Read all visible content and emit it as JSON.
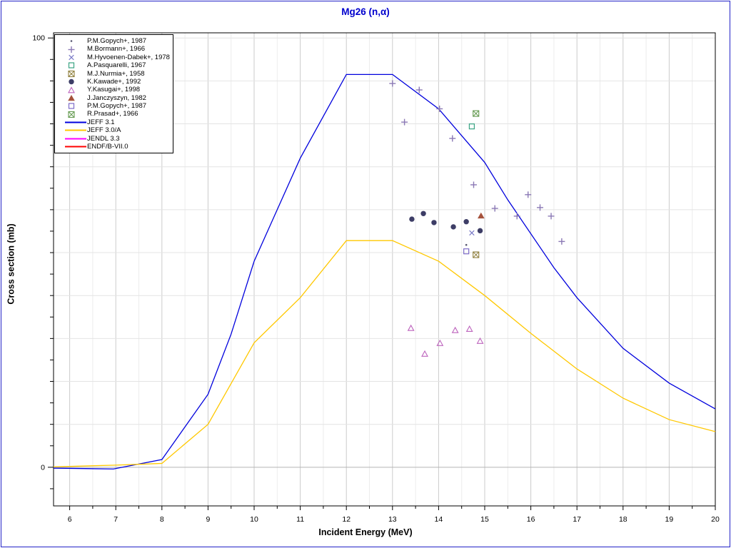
{
  "chart_data": {
    "type": "line+scatter",
    "title": "Mg26 (n,α)",
    "xlabel": "Incident Energy (MeV)",
    "ylabel": "Cross section (mb)",
    "xlim": [
      5.65,
      20
    ],
    "ylim": [
      -9.0,
      101.2
    ],
    "x_major_ticks": [
      6,
      7,
      8,
      9,
      10,
      11,
      12,
      13,
      14,
      15,
      16,
      17,
      18,
      19,
      20
    ],
    "x_minor_tick_step": 0.5,
    "y_labeled_ticks": [
      0,
      100
    ],
    "y_minor_tick_step": 5,
    "y_grid_step": 10,
    "grid": true,
    "legend_position": "top-left",
    "series": [
      {
        "id": "jeff31",
        "label": "JEFF 3.1",
        "color": "#0000dd",
        "points": [
          [
            5.65,
            -0.2
          ],
          [
            6.95,
            -0.4
          ],
          [
            8,
            1.8
          ],
          [
            9,
            17
          ],
          [
            9.5,
            31
          ],
          [
            10,
            48
          ],
          [
            11,
            72
          ],
          [
            12,
            91.5
          ],
          [
            13,
            91.5
          ],
          [
            14,
            83.5
          ],
          [
            15,
            71
          ],
          [
            15.5,
            62.3
          ],
          [
            16.5,
            46.5
          ],
          [
            17,
            39.5
          ],
          [
            18,
            27.7
          ],
          [
            19,
            19.6
          ],
          [
            20,
            13.6
          ]
        ]
      },
      {
        "id": "jeff30a",
        "label": "JEFF 3.0/A",
        "color": "#ffc800",
        "points": [
          [
            5.65,
            0.1
          ],
          [
            7,
            0.5
          ],
          [
            8,
            0.9
          ],
          [
            9,
            10
          ],
          [
            10,
            29
          ],
          [
            11,
            39.5
          ],
          [
            12,
            52.8
          ],
          [
            13,
            52.8
          ],
          [
            14,
            48
          ],
          [
            15,
            40
          ],
          [
            16,
            31.2
          ],
          [
            17,
            22.9
          ],
          [
            18,
            16.1
          ],
          [
            19,
            11.1
          ],
          [
            20,
            8.3
          ]
        ]
      },
      {
        "id": "jendl33",
        "label": "JENDL 3.3",
        "color": "#ff00ff",
        "points": []
      },
      {
        "id": "endfb70",
        "label": "ENDF/B-VII.0",
        "color": "#ff0000",
        "points": []
      }
    ],
    "scatter": [
      {
        "id": "gopych-dot",
        "label": "P.M.Gopych+, 1987",
        "marker": "dot",
        "color": "#55556f",
        "points": [
          [
            14.6,
            51.8
          ]
        ]
      },
      {
        "id": "bormann",
        "label": "M.Bormann+, 1966",
        "marker": "plus",
        "color": "#8b79b5",
        "points": [
          [
            13.0,
            89.4
          ],
          [
            13.26,
            80.4
          ],
          [
            13.58,
            87.9
          ],
          [
            14.02,
            83.5
          ],
          [
            14.3,
            76.6
          ],
          [
            14.76,
            65.8
          ],
          [
            15.22,
            60.3
          ],
          [
            15.7,
            58.5
          ],
          [
            15.94,
            63.5
          ],
          [
            16.2,
            60.5
          ],
          [
            16.44,
            58.5
          ],
          [
            16.67,
            52.6
          ]
        ]
      },
      {
        "id": "hyvoenen",
        "label": "M.Hyvoenen-Dabek+, 1978",
        "marker": "x",
        "color": "#7a7ac8",
        "points": [
          [
            14.72,
            54.6
          ]
        ]
      },
      {
        "id": "pasquarelli",
        "label": "A.Pasquarelli, 1967",
        "marker": "open-square",
        "color": "#3aa383",
        "points": [
          [
            14.72,
            79.4
          ]
        ]
      },
      {
        "id": "nurmia",
        "label": "M.J.Nurmia+, 1958",
        "marker": "crossed-square",
        "color": "#8f7f3c",
        "points": [
          [
            14.81,
            49.5
          ]
        ]
      },
      {
        "id": "kawade",
        "label": "K.Kawade+, 1992",
        "marker": "filled-circle",
        "color": "#3d3d66",
        "points": [
          [
            13.42,
            57.8
          ],
          [
            13.67,
            59.1
          ],
          [
            13.9,
            57.0
          ],
          [
            14.32,
            56.0
          ],
          [
            14.6,
            57.2
          ],
          [
            14.9,
            55.1
          ]
        ]
      },
      {
        "id": "kasugai",
        "label": "Y.Kasugai+, 1998",
        "marker": "open-triangle",
        "color": "#bd64bd",
        "points": [
          [
            13.4,
            32.4
          ],
          [
            13.7,
            26.4
          ],
          [
            14.03,
            28.9
          ],
          [
            14.36,
            31.9
          ],
          [
            14.67,
            32.2
          ],
          [
            14.9,
            29.4
          ]
        ]
      },
      {
        "id": "janczyszyn",
        "label": "J.Janczyszyn, 1982",
        "marker": "filled-triangle",
        "color": "#a5523c",
        "points": [
          [
            14.92,
            58.6
          ]
        ]
      },
      {
        "id": "gopych-square",
        "label": "P.M.Gopych+, 1987",
        "marker": "open-square",
        "color": "#7d6bc8",
        "points": [
          [
            14.6,
            50.3
          ]
        ]
      },
      {
        "id": "prasad",
        "label": "R.Prasad+, 1966",
        "marker": "crossed-square",
        "color": "#649a50",
        "points": [
          [
            14.81,
            82.4
          ]
        ]
      }
    ]
  }
}
